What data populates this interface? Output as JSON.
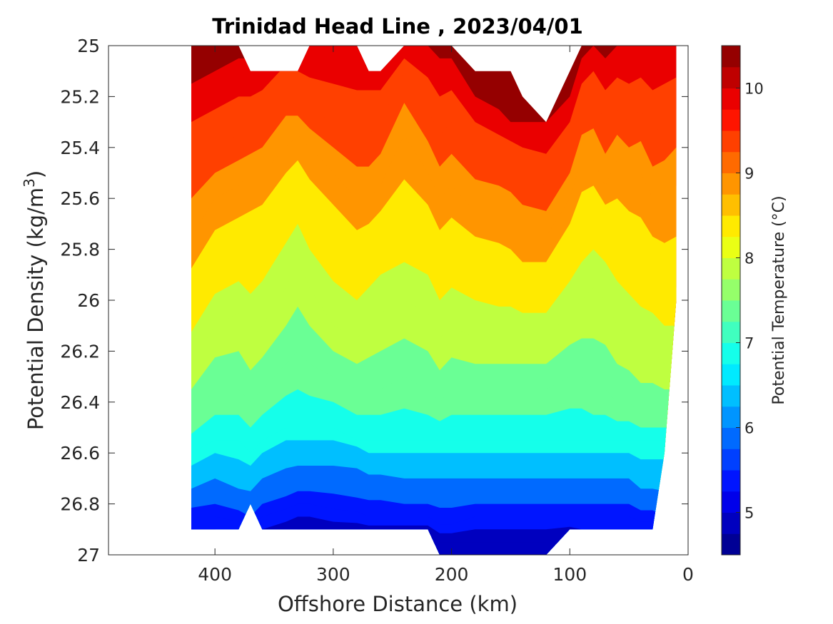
{
  "chart_data": {
    "type": "heatmap",
    "title": "Trinidad Head Line , 2023/04/01",
    "xlabel": "Offshore Distance (km)",
    "ylabel_main": "Potential Density (kg/m",
    "ylabel_sup": "3",
    "ylabel_tail": ")",
    "colorbar_label": "Potential Temperature (°C)",
    "x_reversed": true,
    "xlim": [
      490,
      0
    ],
    "ylim": [
      25,
      27
    ],
    "y_reversed": true,
    "x_ticks": [
      400,
      300,
      200,
      100,
      0
    ],
    "x_tick_labels": [
      "400",
      "300",
      "200",
      "100",
      "0"
    ],
    "y_ticks": [
      25,
      25.2,
      25.4,
      25.6,
      25.8,
      26,
      26.2,
      26.4,
      26.6,
      26.8,
      27
    ],
    "y_tick_labels": [
      "25",
      "25.2",
      "25.4",
      "25.6",
      "25.8",
      "26",
      "26.2",
      "26.4",
      "26.6",
      "26.8",
      "27"
    ],
    "colorbar_range": [
      4.5,
      10.5
    ],
    "colorbar_step": 0.25,
    "colorbar_ticks": [
      5,
      6,
      7,
      8,
      9,
      10
    ],
    "colorbar_tick_labels": [
      "5",
      "6",
      "7",
      "8",
      "9",
      "10"
    ],
    "colormap": "jet",
    "grid": false,
    "stations_km": [
      420,
      400,
      380,
      370,
      360,
      340,
      330,
      320,
      300,
      280,
      270,
      260,
      240,
      220,
      210,
      200,
      180,
      160,
      150,
      140,
      120,
      100,
      90,
      80,
      70,
      60,
      50,
      40,
      30,
      20,
      10
    ],
    "top_density": [
      25.0,
      25.0,
      25.0,
      25.1,
      25.1,
      25.1,
      25.1,
      25.0,
      25.0,
      25.0,
      25.1,
      25.1,
      25.0,
      25.0,
      25.0,
      25.0,
      25.1,
      25.1,
      25.1,
      25.2,
      25.3,
      25.1,
      25.0,
      25.0,
      25.0,
      25.0,
      25.0,
      25.0,
      25.0,
      25.0,
      25.0
    ],
    "bottom_density": [
      26.9,
      26.9,
      26.9,
      26.8,
      26.9,
      26.9,
      26.9,
      26.9,
      26.9,
      26.9,
      26.9,
      26.9,
      26.9,
      26.9,
      27.0,
      27.0,
      27.0,
      27.0,
      27.0,
      27.0,
      27.0,
      26.9,
      26.9,
      26.9,
      26.9,
      26.9,
      26.9,
      26.9,
      26.9,
      26.6,
      26.0
    ],
    "isotherm_levels": [
      10.0,
      9.5,
      9.0,
      8.5,
      8.0,
      7.5,
      7.0,
      6.5,
      6.0,
      5.5,
      5.0
    ],
    "isotherm_density": [
      [
        25.15,
        25.1,
        25.05,
        25.05,
        25.05,
        25.0,
        25.0,
        25.0,
        25.0,
        25.0,
        25.0,
        25.05,
        25.0,
        25.0,
        25.05,
        25.05,
        25.2,
        25.25,
        25.3,
        25.3,
        25.3,
        25.2,
        25.05,
        25.0,
        25.05,
        25.0,
        25.0,
        25.0,
        25.0,
        25.0,
        25.0
      ],
      [
        25.45,
        25.4,
        25.35,
        25.35,
        25.3,
        25.15,
        25.2,
        25.25,
        25.3,
        25.35,
        25.35,
        25.3,
        25.1,
        25.25,
        25.35,
        25.3,
        25.4,
        25.45,
        25.45,
        25.5,
        25.55,
        25.4,
        25.25,
        25.2,
        25.3,
        25.25,
        25.3,
        25.25,
        25.35,
        25.3,
        25.25
      ],
      [
        25.75,
        25.6,
        25.55,
        25.5,
        25.5,
        25.4,
        25.35,
        25.4,
        25.5,
        25.6,
        25.6,
        25.55,
        25.35,
        25.5,
        25.6,
        25.55,
        25.65,
        25.65,
        25.7,
        25.75,
        25.75,
        25.6,
        25.45,
        25.45,
        25.55,
        25.45,
        25.5,
        25.5,
        25.6,
        25.6,
        25.55
      ],
      [
        26.0,
        25.85,
        25.8,
        25.8,
        25.75,
        25.6,
        25.55,
        25.65,
        25.75,
        25.85,
        25.8,
        25.75,
        25.7,
        25.75,
        25.85,
        25.8,
        25.85,
        25.9,
        25.9,
        25.95,
        25.95,
        25.8,
        25.7,
        25.65,
        25.7,
        25.75,
        25.8,
        25.85,
        25.9,
        25.95,
        25.95
      ],
      [
        26.25,
        26.1,
        26.05,
        26.15,
        26.1,
        25.95,
        25.85,
        25.95,
        26.1,
        26.15,
        26.1,
        26.05,
        26.0,
        26.05,
        26.15,
        26.1,
        26.15,
        26.15,
        26.15,
        26.15,
        26.15,
        26.05,
        26.0,
        25.95,
        26.0,
        26.1,
        26.15,
        26.2,
        26.2,
        26.25,
        26.25
      ],
      [
        26.45,
        26.35,
        26.35,
        26.4,
        26.35,
        26.25,
        26.2,
        26.25,
        26.3,
        26.35,
        26.35,
        26.35,
        26.3,
        26.35,
        26.4,
        26.35,
        26.35,
        26.35,
        26.35,
        26.35,
        26.35,
        26.3,
        26.3,
        26.35,
        26.35,
        26.4,
        26.4,
        26.45,
        26.45,
        26.45,
        26.45
      ],
      [
        26.6,
        26.55,
        26.55,
        26.6,
        26.55,
        26.5,
        26.5,
        26.5,
        26.5,
        26.55,
        26.55,
        26.55,
        26.55,
        26.55,
        26.55,
        26.55,
        26.55,
        26.55,
        26.55,
        26.55,
        26.55,
        26.55,
        26.55,
        26.55,
        26.55,
        26.55,
        26.55,
        26.55,
        26.55,
        26.55,
        26.55
      ],
      [
        26.7,
        26.65,
        26.7,
        26.7,
        26.65,
        26.6,
        26.6,
        26.6,
        26.6,
        26.6,
        26.65,
        26.65,
        26.65,
        26.65,
        26.65,
        26.65,
        26.65,
        26.65,
        26.65,
        26.65,
        26.65,
        26.65,
        26.65,
        26.65,
        26.65,
        26.65,
        26.65,
        26.7,
        26.7,
        26.7,
        26.7
      ],
      [
        26.78,
        26.75,
        26.78,
        26.8,
        26.75,
        26.72,
        26.7,
        26.7,
        26.7,
        26.72,
        26.72,
        26.72,
        26.75,
        26.75,
        26.75,
        26.75,
        26.75,
        26.75,
        26.75,
        26.75,
        26.75,
        26.75,
        26.75,
        26.75,
        26.75,
        26.75,
        26.75,
        26.78,
        26.78,
        26.8,
        26.8
      ],
      [
        26.85,
        26.85,
        26.87,
        26.9,
        26.85,
        26.82,
        26.8,
        26.8,
        26.82,
        26.83,
        26.85,
        26.85,
        26.85,
        26.85,
        26.88,
        26.88,
        26.85,
        26.85,
        26.85,
        26.85,
        26.85,
        26.85,
        26.85,
        26.85,
        26.85,
        26.85,
        26.85,
        26.87,
        26.87,
        26.9,
        26.9
      ],
      [
        26.95,
        26.95,
        26.95,
        26.95,
        26.95,
        26.92,
        26.9,
        26.9,
        26.92,
        26.92,
        26.92,
        26.92,
        26.92,
        26.92,
        26.95,
        26.95,
        26.95,
        26.95,
        26.95,
        26.95,
        26.95,
        26.93,
        26.95,
        26.95,
        26.95,
        26.95,
        26.95,
        26.95,
        26.95,
        26.95,
        26.95
      ]
    ]
  }
}
